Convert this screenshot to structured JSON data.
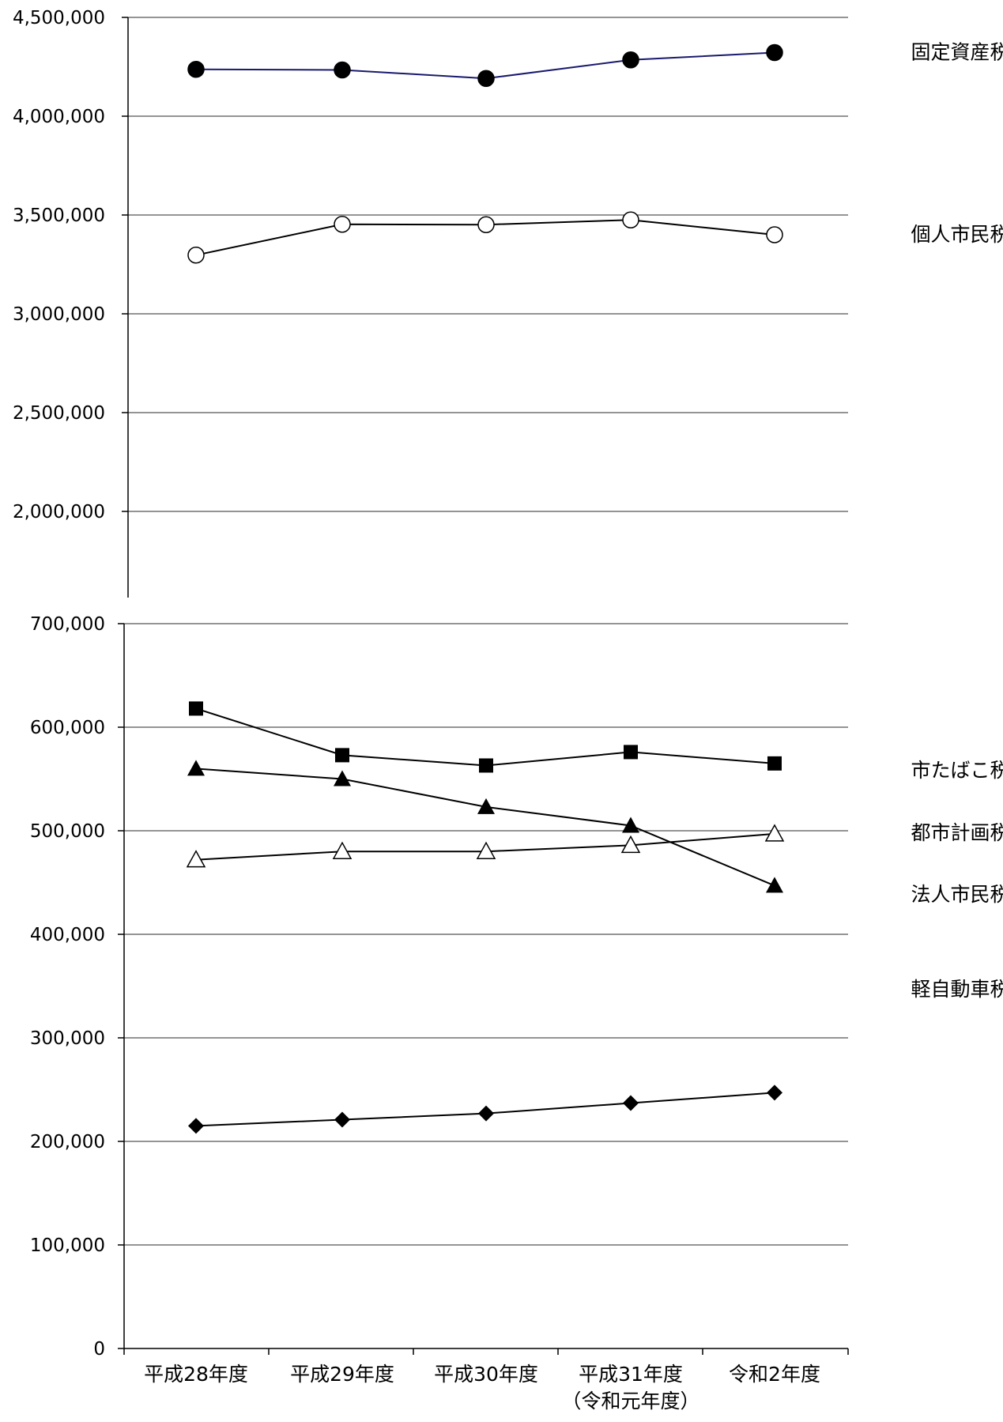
{
  "chart_data": [
    {
      "type": "line",
      "panel": "upper",
      "categories": [
        "平成28年度",
        "平成29年度",
        "平成30年度",
        "平成31年度\n（令和元年度）",
        "令和2年度"
      ],
      "ylim": [
        1700000,
        4500000
      ],
      "yticks": [
        2000000,
        2500000,
        3000000,
        3500000,
        4000000,
        4500000
      ],
      "ytick_labels": [
        "2,000,000",
        "2,500,000",
        "3,000,000",
        "3,500,000",
        "4,000,000",
        "4,500,000"
      ],
      "grid": true,
      "series": [
        {
          "name": "固定資産税",
          "marker": "filled-circle",
          "color": "#1a1a6e",
          "values": [
            4237000,
            4234000,
            4191000,
            4285000,
            4322000
          ]
        },
        {
          "name": "個人市民税",
          "marker": "open-circle",
          "color": "#000000",
          "values": [
            3297000,
            3453000,
            3451000,
            3475000,
            3400000
          ]
        }
      ]
    },
    {
      "type": "line",
      "panel": "lower",
      "categories": [
        "平成28年度",
        "平成29年度",
        "平成30年度",
        "平成31年度\n（令和元年度）",
        "令和2年度"
      ],
      "ylim": [
        0,
        700000
      ],
      "yticks": [
        0,
        100000,
        200000,
        300000,
        400000,
        500000,
        600000,
        700000
      ],
      "ytick_labels": [
        "0",
        "100,000",
        "200,000",
        "300,000",
        "400,000",
        "500,000",
        "600,000",
        "700,000"
      ],
      "grid": true,
      "series": [
        {
          "name": "市たばこ税",
          "marker": "filled-square",
          "color": "#000000",
          "values": [
            618000,
            573000,
            563000,
            576000,
            565000
          ]
        },
        {
          "name": "都市計画税",
          "marker": "open-triangle",
          "color": "#000000",
          "values": [
            472000,
            480000,
            480000,
            486000,
            497000
          ]
        },
        {
          "name": "法人市民税",
          "marker": "filled-triangle",
          "color": "#000000",
          "values": [
            560000,
            550000,
            523000,
            505000,
            447000
          ]
        },
        {
          "name": "軽自動車税",
          "marker": "filled-diamond",
          "color": "#000000",
          "values": [
            215000,
            221000,
            227000,
            237000,
            247000
          ]
        }
      ]
    }
  ]
}
